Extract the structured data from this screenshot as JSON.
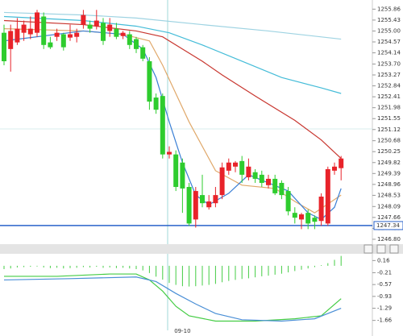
{
  "chart_data": [
    {
      "type": "candlestick",
      "categories": [
        null,
        null,
        null,
        null,
        null,
        null,
        null,
        null,
        null,
        null,
        null,
        null,
        null,
        null,
        null,
        null,
        null,
        null,
        null,
        null,
        null,
        null,
        null,
        null,
        null,
        null,
        null,
        "09-10",
        null,
        null,
        null,
        null,
        null,
        null,
        null,
        null,
        null,
        null,
        null,
        null,
        null,
        null,
        null,
        null,
        null,
        null,
        null,
        null,
        null,
        null,
        null,
        null
      ],
      "open": [
        1254.93,
        1254.29,
        1254.55,
        1254.93,
        1254.87,
        1254.93,
        1255.57,
        1254.55,
        1254.77,
        1254.87,
        1254.74,
        1254.77,
        1255.25,
        1255.25,
        1255.19,
        1255.32,
        1255.0,
        1255.09,
        1254.8,
        1254.87,
        1254.68,
        1254.36,
        1253.81,
        1252.38,
        1252.44,
        1250.14,
        1250.14,
        1249.82,
        1248.86,
        1247.58,
        1248.54,
        1248.06,
        1248.22,
        1248.54,
        1249.5,
        1249.66,
        1249.88,
        1249.24,
        1249.44,
        1249.34,
        1248.93,
        1249.18,
        1249.02,
        1248.7,
        1247.84,
        1247.58,
        1247.84,
        1247.65,
        1247.52,
        1247.42,
        1249.5,
        1249.6
      ],
      "close": [
        1253.81,
        1255.0,
        1255.09,
        1255.25,
        1255.09,
        1255.73,
        1254.45,
        1254.36,
        1254.93,
        1254.36,
        1254.87,
        1254.93,
        1255.63,
        1255.09,
        1255.41,
        1254.61,
        1255.25,
        1254.77,
        1254.93,
        1254.45,
        1254.29,
        1253.91,
        1252.22,
        1251.9,
        1250.14,
        1250.24,
        1248.86,
        1248.8,
        1247.42,
        1248.7,
        1248.22,
        1248.29,
        1248.54,
        1249.63,
        1249.82,
        1249.82,
        1249.34,
        1249.66,
        1249.18,
        1249.02,
        1249.18,
        1248.61,
        1248.54,
        1247.9,
        1247.65,
        1247.78,
        1247.42,
        1247.49,
        1248.48,
        1249.56,
        1249.66,
        1249.98
      ],
      "high": [
        1255.25,
        1255.25,
        1255.51,
        1255.41,
        1255.57,
        1255.83,
        1255.73,
        1254.77,
        1255.09,
        1254.93,
        1255.25,
        1255.09,
        1255.83,
        1255.41,
        1255.83,
        1255.51,
        1255.51,
        1255.32,
        1255.0,
        1255.0,
        1254.77,
        1254.45,
        1253.97,
        1252.54,
        1252.54,
        1250.46,
        1250.3,
        1249.98,
        1249.02,
        1248.86,
        1249.34,
        1248.54,
        1248.86,
        1249.82,
        1249.98,
        1249.88,
        1250.08,
        1249.98,
        1249.56,
        1249.5,
        1249.34,
        1249.34,
        1249.12,
        1248.86,
        1248.06,
        1247.84,
        1247.97,
        1247.74,
        1248.61,
        1249.66,
        1249.82,
        1250.08
      ],
      "low": [
        1253.65,
        1253.4,
        1254.45,
        1254.61,
        1254.68,
        1254.77,
        1254.29,
        1254.29,
        1254.61,
        1254.23,
        1254.61,
        1254.55,
        1255.09,
        1254.93,
        1255.06,
        1254.45,
        1254.77,
        1254.68,
        1254.68,
        1254.29,
        1254.13,
        1253.81,
        1251.9,
        1251.74,
        1249.98,
        1249.98,
        1248.7,
        1247.84,
        1247.33,
        1247.26,
        1248.06,
        1247.97,
        1248.06,
        1248.38,
        1249.34,
        1249.44,
        1249.02,
        1249.12,
        1249.02,
        1248.86,
        1248.8,
        1248.54,
        1248.38,
        1247.74,
        1247.42,
        1247.2,
        1247.2,
        1247.2,
        1247.33,
        1247.33,
        1249.34,
        1249.12
      ],
      "up_color": "#e8232a",
      "down_color": "#2ecc2e",
      "overlays": [
        {
          "color": "#9ed3e2",
          "x": [
            0,
            12,
            20,
            30,
            40,
            51
          ],
          "values": [
            1255.73,
            1255.63,
            1255.51,
            1255.25,
            1255.0,
            1254.68
          ]
        },
        {
          "color": "#44bcd8",
          "x": [
            0,
            12,
            20,
            25,
            30,
            36,
            42,
            48,
            51
          ],
          "values": [
            1255.57,
            1255.41,
            1255.19,
            1254.93,
            1254.45,
            1253.81,
            1253.17,
            1252.76,
            1252.54
          ]
        },
        {
          "color": "#c8362f",
          "x": [
            0,
            12,
            20,
            24,
            27,
            30,
            33,
            38,
            44,
            48,
            51
          ],
          "values": [
            1255.41,
            1255.25,
            1255.0,
            1254.77,
            1254.29,
            1253.81,
            1253.27,
            1252.44,
            1251.48,
            1250.71,
            1249.98
          ]
        },
        {
          "color": "#e0a86a",
          "x": [
            0,
            12,
            18,
            22,
            24,
            28,
            32,
            36,
            41,
            44,
            47,
            51
          ],
          "values": [
            1255.09,
            1255.0,
            1254.87,
            1254.61,
            1253.65,
            1251.42,
            1249.5,
            1248.93,
            1248.8,
            1248.29,
            1247.84,
            1248.54
          ]
        },
        {
          "color": "#3a7fd5",
          "x": [
            0,
            12,
            18,
            21,
            23,
            25,
            27,
            29,
            31,
            34,
            37,
            40,
            43,
            46,
            48,
            50,
            51
          ],
          "values": [
            1254.61,
            1255.0,
            1254.87,
            1254.29,
            1253.17,
            1251.42,
            1249.82,
            1248.54,
            1248.16,
            1248.61,
            1249.34,
            1249.02,
            1248.7,
            1247.84,
            1247.58,
            1248.06,
            1248.8
          ]
        }
      ],
      "price_line": {
        "value": 1247.34,
        "color": "#2a62c9"
      },
      "ylim": [
        1246.64,
        1256.22
      ],
      "yticks": [
        1255.86,
        1255.43,
        {
          "value": 1255.0,
          "label": "1255.00"
        },
        1254.57,
        1254.14,
        {
          "value": 1253.7,
          "label": "1253.70"
        },
        1253.27,
        1252.84,
        1252.41,
        1251.98,
        1251.55,
        1251.12,
        1250.68,
        1250.25,
        1249.82,
        1249.39,
        1248.96,
        1248.53,
        1248.09,
        1247.66,
        1247.23,
        {
          "value": 1246.8,
          "label": "1246.80"
        }
      ]
    },
    {
      "type": "macd",
      "histogram": {
        "color": "#44cc44",
        "values": [
          -0.1,
          -0.08,
          -0.05,
          -0.04,
          -0.03,
          -0.02,
          -0.05,
          -0.07,
          -0.06,
          -0.08,
          -0.07,
          -0.06,
          -0.04,
          -0.05,
          -0.03,
          -0.06,
          -0.05,
          -0.07,
          -0.06,
          -0.08,
          -0.1,
          -0.14,
          -0.22,
          -0.33,
          -0.42,
          -0.52,
          -0.58,
          -0.62,
          -0.63,
          -0.62,
          -0.6,
          -0.58,
          -0.55,
          -0.5,
          -0.46,
          -0.43,
          -0.4,
          -0.38,
          -0.35,
          -0.32,
          -0.3,
          -0.27,
          -0.24,
          -0.2,
          -0.16,
          -0.12,
          -0.08,
          -0.04,
          0.02,
          0.08,
          0.18,
          0.3
        ]
      },
      "series": [
        {
          "color": "#44cc44",
          "x": [
            0,
            8,
            16,
            20,
            22,
            24,
            26,
            28,
            32,
            38,
            44,
            48,
            51
          ],
          "values": [
            -0.32,
            -0.32,
            -0.25,
            -0.25,
            -0.43,
            -0.77,
            -1.23,
            -1.52,
            -1.68,
            -1.68,
            -1.61,
            -1.52,
            -1.0
          ]
        },
        {
          "color": "#4a8fd6",
          "x": [
            0,
            10,
            20,
            23,
            26,
            29,
            32,
            36,
            42,
            47,
            51
          ],
          "values": [
            -0.43,
            -0.39,
            -0.34,
            -0.48,
            -0.84,
            -1.16,
            -1.45,
            -1.64,
            -1.68,
            -1.61,
            -1.29
          ]
        }
      ],
      "ylim": [
        -1.84,
        0.34
      ],
      "yticks": [
        0.16,
        -0.21,
        -0.57,
        -0.93,
        -1.29,
        -1.66
      ]
    }
  ]
}
